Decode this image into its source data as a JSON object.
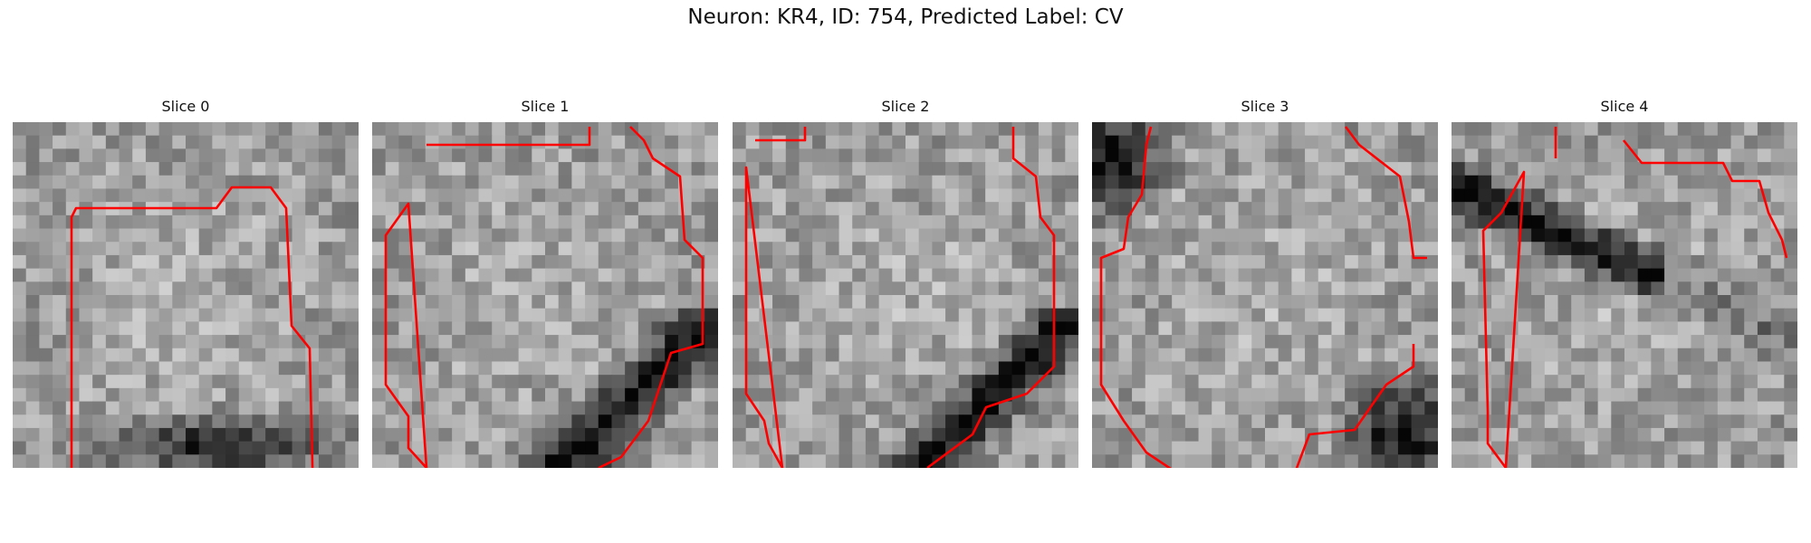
{
  "figure": {
    "title": "Neuron: KR4, ID: 754, Predicted Label: CV"
  },
  "colors": {
    "contour": "#ff0000",
    "background": "#ffffff"
  },
  "slices": [
    {
      "title": "Slice 0",
      "seed": 11,
      "dark_band": "bottom-center"
    },
    {
      "title": "Slice 1",
      "seed": 23,
      "dark_band": "diagonal-bottom-right"
    },
    {
      "title": "Slice 2",
      "seed": 37,
      "dark_band": "diagonal-bottom-right"
    },
    {
      "title": "Slice 3",
      "seed": 41,
      "dark_band": "top-left-and-bottom-right"
    },
    {
      "title": "Slice 4",
      "seed": 53,
      "dark_band": "top-left-diagonal"
    }
  ]
}
